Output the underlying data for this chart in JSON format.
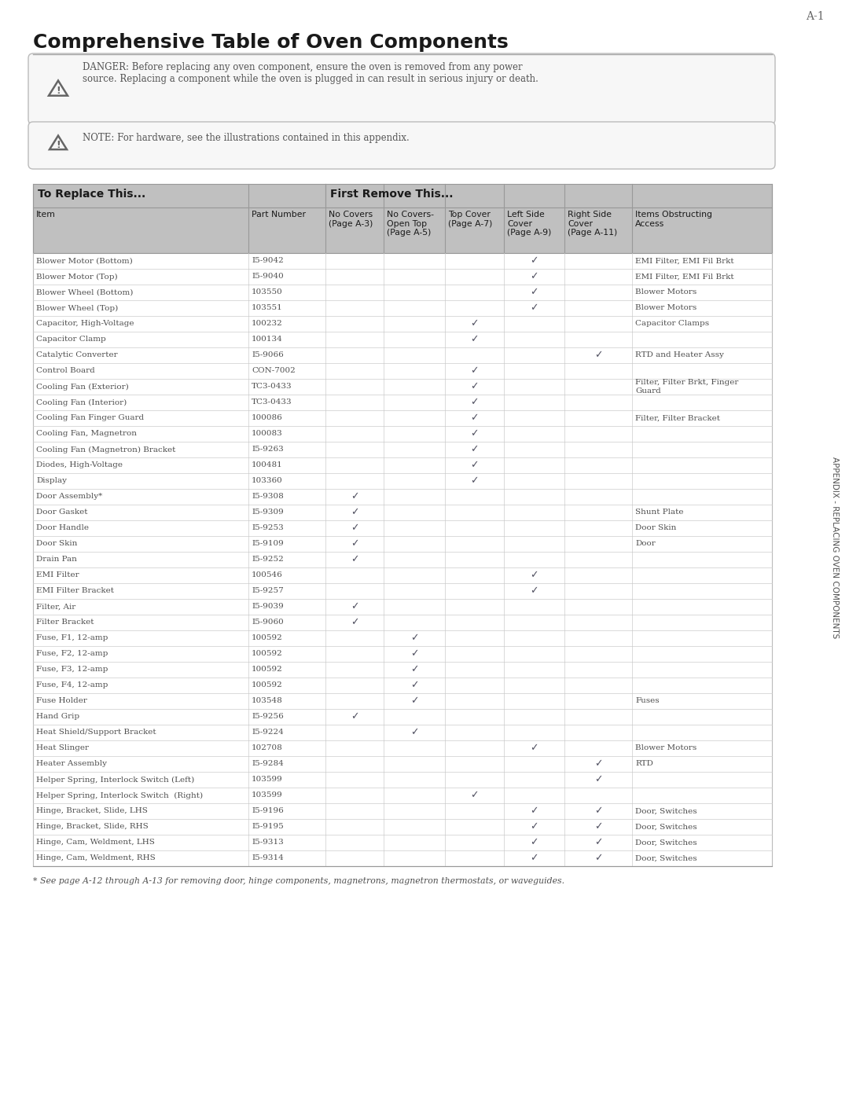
{
  "page_label": "A-1",
  "title": "Comprehensive Table of Oven Components",
  "danger_text": "DANGER: Before replacing any oven component, ensure the oven is removed from any power\nsource. Replacing a component while the oven is plugged in can result in serious injury or death.",
  "note_text": "NOTE: For hardware, see the illustrations contained in this appendix.",
  "header1": "To Replace This...",
  "header2": "First Remove This...",
  "col_headers": [
    "Item",
    "Part Number",
    "No Covers\n(Page A-3)",
    "No Covers-\nOpen Top\n(Page A-5)",
    "Top Cover\n(Page A-7)",
    "Left Side\nCover\n(Page A-9)",
    "Right Side\nCover\n(Page A-11)",
    "Items Obstructing\nAccess"
  ],
  "rows": [
    [
      "Blower Motor (Bottom)",
      "I5-9042",
      "",
      "",
      "",
      "check",
      "",
      "EMI Filter, EMI Fil Brkt"
    ],
    [
      "Blower Motor (Top)",
      "I5-9040",
      "",
      "",
      "",
      "check",
      "",
      "EMI Filter, EMI Fil Brkt"
    ],
    [
      "Blower Wheel (Bottom)",
      "103550",
      "",
      "",
      "",
      "check",
      "",
      "Blower Motors"
    ],
    [
      "Blower Wheel (Top)",
      "103551",
      "",
      "",
      "",
      "check",
      "",
      "Blower Motors"
    ],
    [
      "Capacitor, High-Voltage",
      "100232",
      "",
      "",
      "check",
      "",
      "",
      "Capacitor Clamps"
    ],
    [
      "Capacitor Clamp",
      "100134",
      "",
      "",
      "check",
      "",
      "",
      ""
    ],
    [
      "Catalytic Converter",
      "I5-9066",
      "",
      "",
      "",
      "",
      "check",
      "RTD and Heater Assy"
    ],
    [
      "Control Board",
      "CON-7002",
      "",
      "",
      "check",
      "",
      "",
      ""
    ],
    [
      "Cooling Fan (Exterior)",
      "TC3-0433",
      "",
      "",
      "check",
      "",
      "",
      "Filter, Filter Brkt, Finger\nGuard"
    ],
    [
      "Cooling Fan (Interior)",
      "TC3-0433",
      "",
      "",
      "check",
      "",
      "",
      ""
    ],
    [
      "Cooling Fan Finger Guard",
      "100086",
      "",
      "",
      "check",
      "",
      "",
      "Filter, Filter Bracket"
    ],
    [
      "Cooling Fan, Magnetron",
      "100083",
      "",
      "",
      "check",
      "",
      "",
      ""
    ],
    [
      "Cooling Fan (Magnetron) Bracket",
      "I5-9263",
      "",
      "",
      "check",
      "",
      "",
      ""
    ],
    [
      "Diodes, High-Voltage",
      "100481",
      "",
      "",
      "check",
      "",
      "",
      ""
    ],
    [
      "Display",
      "103360",
      "",
      "",
      "check",
      "",
      "",
      ""
    ],
    [
      "Door Assembly*",
      "I5-9308",
      "check",
      "",
      "",
      "",
      "",
      ""
    ],
    [
      "Door Gasket",
      "I5-9309",
      "check",
      "",
      "",
      "",
      "",
      "Shunt Plate"
    ],
    [
      "Door Handle",
      "I5-9253",
      "check",
      "",
      "",
      "",
      "",
      "Door Skin"
    ],
    [
      "Door Skin",
      "I5-9109",
      "check",
      "",
      "",
      "",
      "",
      "Door"
    ],
    [
      "Drain Pan",
      "I5-9252",
      "check",
      "",
      "",
      "",
      "",
      ""
    ],
    [
      "EMI Filter",
      "100546",
      "",
      "",
      "",
      "check",
      "",
      ""
    ],
    [
      "EMI Filter Bracket",
      "I5-9257",
      "",
      "",
      "",
      "check",
      "",
      ""
    ],
    [
      "Filter, Air",
      "I5-9039",
      "check",
      "",
      "",
      "",
      "",
      ""
    ],
    [
      "Filter Bracket",
      "I5-9060",
      "check",
      "",
      "",
      "",
      "",
      ""
    ],
    [
      "Fuse, F1, 12-amp",
      "100592",
      "",
      "check",
      "",
      "",
      "",
      ""
    ],
    [
      "Fuse, F2, 12-amp",
      "100592",
      "",
      "check",
      "",
      "",
      "",
      ""
    ],
    [
      "Fuse, F3, 12-amp",
      "100592",
      "",
      "check",
      "",
      "",
      "",
      ""
    ],
    [
      "Fuse, F4, 12-amp",
      "100592",
      "",
      "check",
      "",
      "",
      "",
      ""
    ],
    [
      "Fuse Holder",
      "103548",
      "",
      "check",
      "",
      "",
      "",
      "Fuses"
    ],
    [
      "Hand Grip",
      "I5-9256",
      "check",
      "",
      "",
      "",
      "",
      ""
    ],
    [
      "Heat Shield/Support Bracket",
      "I5-9224",
      "",
      "check",
      "",
      "",
      "",
      ""
    ],
    [
      "Heat Slinger",
      "102708",
      "",
      "",
      "",
      "check",
      "",
      "Blower Motors"
    ],
    [
      "Heater Assembly",
      "I5-9284",
      "",
      "",
      "",
      "",
      "check",
      "RTD"
    ],
    [
      "Helper Spring, Interlock Switch (Left)",
      "103599",
      "",
      "",
      "",
      "",
      "check",
      ""
    ],
    [
      "Helper Spring, Interlock Switch  (Right)",
      "103599",
      "",
      "",
      "check",
      "",
      "",
      ""
    ],
    [
      "Hinge, Bracket, Slide, LHS",
      "I5-9196",
      "",
      "",
      "",
      "check",
      "check",
      "Door, Switches"
    ],
    [
      "Hinge, Bracket, Slide, RHS",
      "I5-9195",
      "",
      "",
      "",
      "check",
      "check",
      "Door, Switches"
    ],
    [
      "Hinge, Cam, Weldment, LHS",
      "I5-9313",
      "",
      "",
      "",
      "check",
      "check",
      "Door, Switches"
    ],
    [
      "Hinge, Cam, Weldment, RHS",
      "I5-9314",
      "",
      "",
      "",
      "check",
      "check",
      "Door, Switches"
    ]
  ],
  "footnote": "* See page A-12 through A-13 for removing door, hinge components, magnetrons, magnetron thermostats, or waveguides.",
  "sidebar_text": "APPENDIX - REPLACING OVEN COMPONENTS",
  "bg_color": "#ffffff",
  "header_bg": "#c0c0c0",
  "row_bg_even": "#ffffff",
  "row_bg_odd": "#ffffff",
  "border_color": "#999999",
  "text_color": "#505050",
  "header_text_color": "#1a1a1a",
  "title_color": "#1a1a1a"
}
